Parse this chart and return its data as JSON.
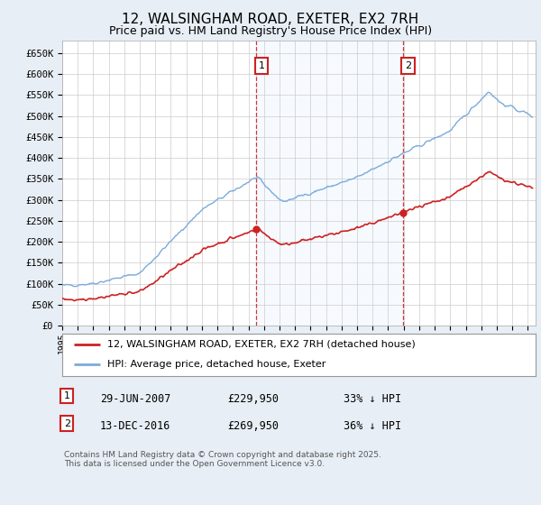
{
  "title": "12, WALSINGHAM ROAD, EXETER, EX2 7RH",
  "subtitle": "Price paid vs. HM Land Registry's House Price Index (HPI)",
  "ylim": [
    0,
    680000
  ],
  "xlim_start": 1995.0,
  "xlim_end": 2025.5,
  "hpi_color": "#7aabdb",
  "price_color": "#cc2222",
  "sale1_x": 2007.49,
  "sale1_y": 229950,
  "sale1_label": "1",
  "sale1_date": "29-JUN-2007",
  "sale1_price": "£229,950",
  "sale1_pct": "33% ↓ HPI",
  "sale2_x": 2016.95,
  "sale2_y": 269950,
  "sale2_label": "2",
  "sale2_date": "13-DEC-2016",
  "sale2_price": "£269,950",
  "sale2_pct": "36% ↓ HPI",
  "legend_line1": "12, WALSINGHAM ROAD, EXETER, EX2 7RH (detached house)",
  "legend_line2": "HPI: Average price, detached house, Exeter",
  "footnote": "Contains HM Land Registry data © Crown copyright and database right 2025.\nThis data is licensed under the Open Government Licence v3.0.",
  "background_color": "#e8eef5",
  "plot_bg_color": "#ffffff",
  "grid_color": "#cccccc",
  "shade_color": "#ddeeff"
}
